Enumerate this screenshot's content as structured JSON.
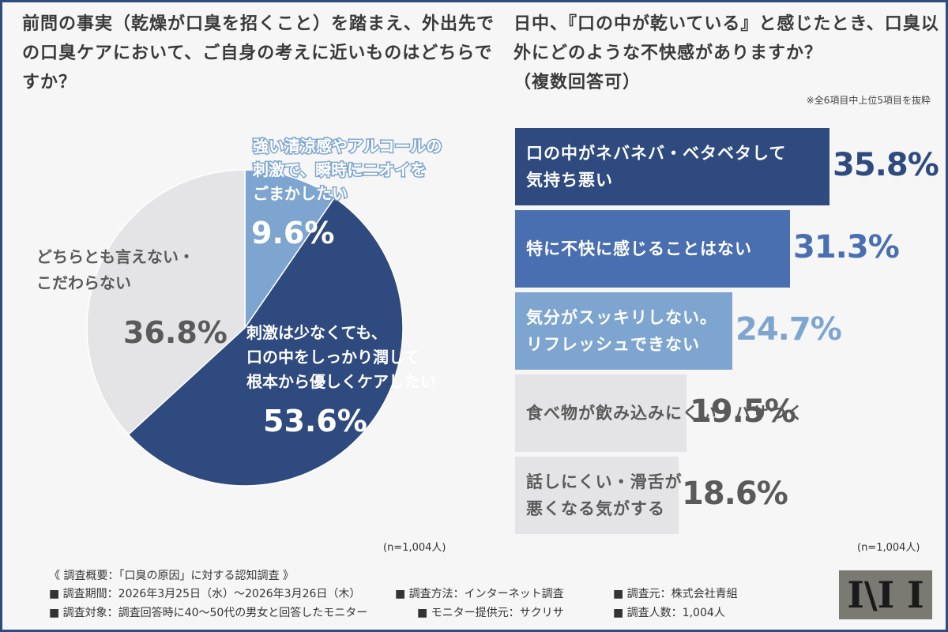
{
  "left_title": "前問の事実（乾燥が口臭を招くこと）を踏まえ、外出先での口臭ケアにおいて、ご自身の考えに近いものはどちらですか？",
  "right_title": "日中、『口の中が乾いている』と感じたとき、口臭以外にどのような不快感がありますか？",
  "right_title_sub": "（複数回答可）",
  "right_note": "※全6項目中上位5項目を抜粋",
  "n_left": "(n=1,004人)",
  "n_right": "(n=1,004人)",
  "colors": {
    "dark_blue": "#2e4a7e",
    "mid_blue": "#4a6fb0",
    "light_blue": "#7ea5cf",
    "gray": "#e4e4e6",
    "text_gray": "#5a5a5a"
  },
  "chart_data": [
    {
      "type": "pie",
      "slices": [
        {
          "label": "強い清涼感やアルコールの刺激で、瞬時にニオイをごまかしたい",
          "value": 9.6,
          "pct_label": "9.6%",
          "color": "#7ea5cf"
        },
        {
          "label": "刺激は少なくても、口の中をしっかり潤して根本から優しくケアしたい",
          "value": 53.6,
          "pct_label": "53.6%",
          "color": "#2e4a7e"
        },
        {
          "label": "どちらとも言えない・こだわらない",
          "value": 36.8,
          "pct_label": "36.8%",
          "color": "#e4e4e6"
        }
      ]
    },
    {
      "type": "bar",
      "orientation": "horizontal",
      "categories": [
        "口の中がネバネバ・ベタベタして気持ち悪い",
        "特に不快に感じることはない",
        "気分がスッキリしない。リフレッシュできない",
        "食べ物が飲み込みにくい・パサつく",
        "話しにくい・滑舌が悪くなる気がする"
      ],
      "values": [
        35.8,
        31.3,
        24.7,
        19.5,
        18.6
      ],
      "pct_labels": [
        "35.8%",
        "31.3%",
        "24.7%",
        "19.5%",
        "18.6%"
      ],
      "colors": [
        "#2e4a7e",
        "#4a6fb0",
        "#7ea5cf",
        "#e4e4e6",
        "#e4e4e6"
      ],
      "xlim": [
        0,
        35.8
      ]
    }
  ],
  "pie_labels": {
    "slice1_line1": "強い清涼感やアルコールの",
    "slice1_line2": "刺激で、瞬時にニオイを",
    "slice1_line3": "ごまかしたい",
    "slice2_line1": "刺激は少なくても、",
    "slice2_line2": "口の中をしっかり潤して",
    "slice2_line3": "根本から優しくケアしたい",
    "slice3_line1": "どちらとも言えない・",
    "slice3_line2": "こだわらない"
  },
  "bar_labels": [
    [
      "口の中がネバネバ・ベタベタして",
      "気持ち悪い"
    ],
    [
      "特に不快に感じることはない"
    ],
    [
      "気分がスッキリしない。",
      "リフレッシュできない"
    ],
    [
      "食べ物が飲み込みにくい・パサつく"
    ],
    [
      "話しにくい・滑舌が",
      "悪くなる気がする"
    ]
  ],
  "footer": {
    "heading": "《 調査概要：「口臭の原因」に対する認知調査 》",
    "period": "■ 調査期間：2026年3月25日（水）〜2026年3月26日（木）",
    "method": "■ 調査方法：インターネット調査",
    "source": "■ 調査元：株式会社青組",
    "target": "■ 調査対象：調査回答時に40〜50代の男女と回答したモニター",
    "provider": "■ モニター提供元：サクリサ",
    "count": "■ 調査人数：1,004人"
  },
  "logo_text": "I\\I I"
}
